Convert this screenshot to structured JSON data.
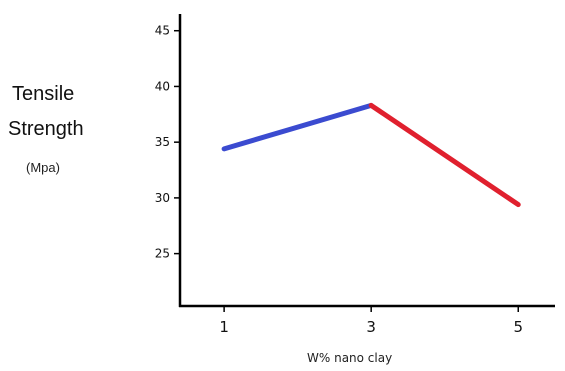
{
  "chart_data": {
    "type": "line",
    "ylabel_line1": "Tensile",
    "ylabel_line2": "Strength",
    "ylabel_unit": "(Mpa)",
    "xlabel": "W% nano clay",
    "x_ticks": [
      "1",
      "3",
      "5"
    ],
    "x_range": [
      0.4,
      5.5
    ],
    "y_ticks": [
      25,
      30,
      35,
      40,
      45
    ],
    "ylim": [
      20.3,
      46.5
    ],
    "grid": false,
    "series": [
      {
        "x": [
          1,
          3
        ],
        "y": [
          34.4,
          38.3
        ],
        "color": "#3b4bd0"
      },
      {
        "x": [
          3,
          5
        ],
        "y": [
          38.3,
          29.4
        ],
        "color": "#e0202e"
      }
    ]
  }
}
